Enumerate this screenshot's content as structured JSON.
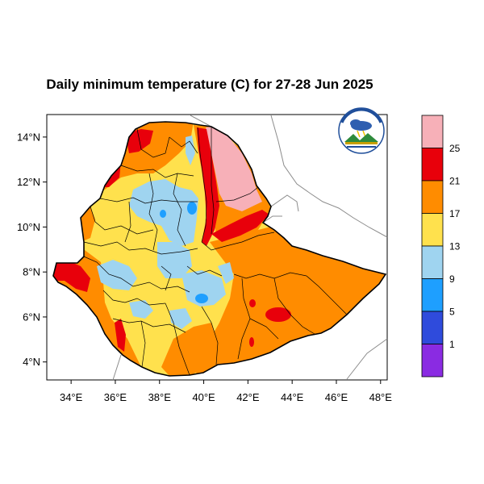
{
  "title": "Daily minimum temperature (C) for 27-28 Jun 2025",
  "map": {
    "lon_range": [
      32.9,
      48.3
    ],
    "lat_range": [
      3.2,
      15.0
    ],
    "lon_ticks": [
      "34°E",
      "36°E",
      "38°E",
      "40°E",
      "42°E",
      "44°E",
      "46°E",
      "48°E"
    ],
    "lat_ticks": [
      "4°N",
      "6°N",
      "8°N",
      "10°N",
      "12°N",
      "14°N"
    ]
  },
  "legend": {
    "labels": [
      "25",
      "21",
      "17",
      "13",
      "9",
      "5",
      "1"
    ],
    "colors": [
      "#f7b0b8",
      "#e8000b",
      "#ff8c00",
      "#ffe14d",
      "#9fd4f0",
      "#1e9fff",
      "#2f4bdc",
      "#8a2be2"
    ]
  },
  "logo": {
    "icon": "weather-agency-logo"
  }
}
